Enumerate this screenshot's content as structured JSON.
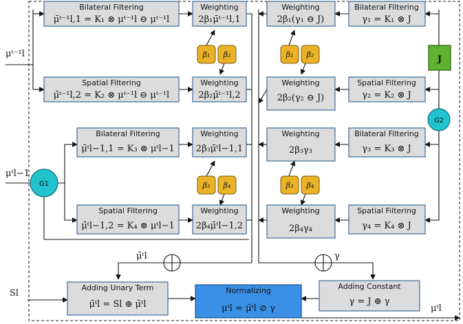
{
  "colors": {
    "box_fill": "#dcdcdc",
    "box_stroke": "#3b6a9a",
    "normalizing_fill": "#3a8fe6",
    "beta_fill": "#e9b227",
    "g_node_fill": "#22c3cf",
    "j_node_fill": "#5fb32e",
    "wire": "#111111"
  },
  "left_column": {
    "bilateral_1": {
      "title": "Bilateral Filtering",
      "formula": "μ̄ᵗ⁻¹l,1 = K₁ ⊗ μᵗ⁻¹l ⊖ μᵗ⁻¹l"
    },
    "spatial_1": {
      "title": "Spatial Filtering",
      "formula": "μ̄ᵗ⁻¹l,2 = K₂ ⊗ μᵗ⁻¹l ⊖ μᵗ⁻¹l"
    },
    "bilateral_2": {
      "title": "Bilateral Filtering",
      "formula": "μ̄ᵗl−1,1 = K₃ ⊗ μᵗl−1"
    },
    "spatial_2": {
      "title": "Spatial Filtering",
      "formula": "μ̄ᵗl−1,2 = K₄ ⊗ μᵗl−1"
    }
  },
  "left_weighting": {
    "w1": {
      "title": "Weighting",
      "formula": "2β₁μ̄ᵗ⁻¹l,1"
    },
    "w2": {
      "title": "Weighting",
      "formula": "2β₂μ̄ᵗ⁻¹l,2"
    },
    "w3": {
      "title": "Weighting",
      "formula": "2β₃μ̄ᵗl−1,1"
    },
    "w4": {
      "title": "Weighting",
      "formula": "2β₄μ̄ᵗl−1,2"
    }
  },
  "right_weighting": {
    "w1": {
      "title": "Weighting",
      "formula": "2β₁(γ₁ ⊖ J)"
    },
    "w2": {
      "title": "Weighting",
      "formula": "2β₂(γ₂ ⊖ J)"
    },
    "w3": {
      "title": "Weighting",
      "formula": "2β₃γ₃"
    },
    "w4": {
      "title": "Weighting",
      "formula": "2β₄γ₄"
    }
  },
  "right_column": {
    "bilateral_1": {
      "title": "Bilateral Filtering",
      "formula": "γ₁ = K₁ ⊗ J"
    },
    "spatial_1": {
      "title": "Spatial Filtering",
      "formula": "γ₂ = K₂ ⊗ J"
    },
    "bilateral_2": {
      "title": "Bilateral Filtering",
      "formula": "γ₃ = K₃ ⊗ J"
    },
    "spatial_2": {
      "title": "Spatial Filtering",
      "formula": "γ₄ = K₄ ⊗ J"
    }
  },
  "betas": {
    "top_left": [
      "β₁",
      "β₂"
    ],
    "top_right": [
      "β₁",
      "β₂"
    ],
    "bot_left": [
      "β₃",
      "β₄"
    ],
    "bot_right": [
      "β₃",
      "β₄"
    ]
  },
  "nodes": {
    "g1": "G1",
    "g2": "G2",
    "j": "J"
  },
  "bottom": {
    "unary": {
      "title": "Adding Unary Term",
      "formula": "μ̃ᵗl = Sl ⊕ μ̄ᵗl"
    },
    "normalize": {
      "title": "Normalizing",
      "formula": "μᵗl = μ̃ᵗl ⊘ γ"
    },
    "constant": {
      "title": "Adding Constant",
      "formula": "γ = J ⊕ γ"
    }
  },
  "io_labels": {
    "input_prev": "μᵗ⁻¹l",
    "input_lower": "μᵗl−1",
    "sum_label_left": "μ̄ᵗl",
    "sum_label_right": "γ",
    "unary_input": "Sl",
    "output": "μᵗl"
  }
}
